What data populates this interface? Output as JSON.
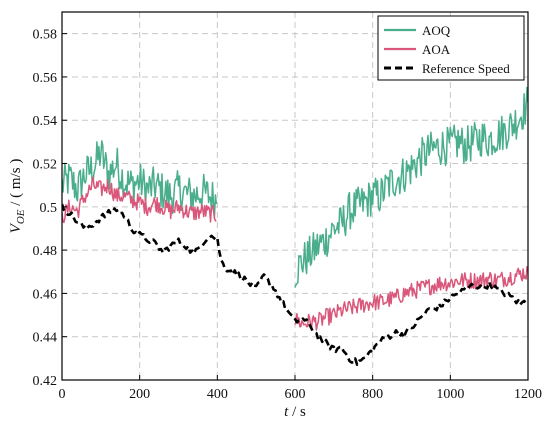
{
  "chart_data": {
    "type": "line",
    "xlabel": {
      "var": "t",
      "sep": " / ",
      "unit": "s"
    },
    "ylabel": {
      "var": "V",
      "sub": "OE",
      "sep": " / ",
      "unit": "( m/s )"
    },
    "xlim": [
      0,
      1200
    ],
    "ylim": [
      0.42,
      0.59
    ],
    "x_ticks": [
      "0",
      "200",
      "400",
      "600",
      "800",
      "1000",
      "1200"
    ],
    "y_ticks": [
      "0.42",
      "0.44",
      "0.46",
      "0.48",
      "0.5",
      "0.52",
      "0.54",
      "0.56",
      "0.58"
    ],
    "grid": true,
    "legend_position": "top-right",
    "series": [
      {
        "name": "AOQ",
        "color": "#4aae8c",
        "style": "solid",
        "points": [
          [
            0,
            0.51
          ],
          [
            20,
            0.513
          ],
          [
            40,
            0.508
          ],
          [
            60,
            0.515
          ],
          [
            80,
            0.518
          ],
          [
            100,
            0.525
          ],
          [
            120,
            0.515
          ],
          [
            140,
            0.52
          ],
          [
            160,
            0.512
          ],
          [
            180,
            0.51
          ],
          [
            200,
            0.512
          ],
          [
            220,
            0.508
          ],
          [
            240,
            0.51
          ],
          [
            260,
            0.507
          ],
          [
            280,
            0.505
          ],
          [
            300,
            0.508
          ],
          [
            320,
            0.506
          ],
          [
            340,
            0.505
          ],
          [
            360,
            0.507
          ],
          [
            380,
            0.505
          ],
          [
            400,
            0.503
          ],
          [
            600,
            0.47
          ],
          [
            620,
            0.475
          ],
          [
            640,
            0.478
          ],
          [
            660,
            0.482
          ],
          [
            680,
            0.485
          ],
          [
            700,
            0.49
          ],
          [
            720,
            0.492
          ],
          [
            740,
            0.498
          ],
          [
            760,
            0.5
          ],
          [
            780,
            0.502
          ],
          [
            800,
            0.505
          ],
          [
            820,
            0.505
          ],
          [
            840,
            0.51
          ],
          [
            860,
            0.513
          ],
          [
            880,
            0.515
          ],
          [
            900,
            0.518
          ],
          [
            920,
            0.522
          ],
          [
            940,
            0.525
          ],
          [
            960,
            0.527
          ],
          [
            980,
            0.528
          ],
          [
            1000,
            0.528
          ],
          [
            1020,
            0.53
          ],
          [
            1040,
            0.528
          ],
          [
            1060,
            0.53
          ],
          [
            1080,
            0.532
          ],
          [
            1100,
            0.531
          ],
          [
            1120,
            0.533
          ],
          [
            1140,
            0.535
          ],
          [
            1160,
            0.538
          ],
          [
            1180,
            0.542
          ],
          [
            1200,
            0.548
          ]
        ]
      },
      {
        "name": "AOA",
        "color": "#d9577a",
        "style": "solid",
        "points": [
          [
            0,
            0.495
          ],
          [
            20,
            0.5
          ],
          [
            40,
            0.498
          ],
          [
            60,
            0.505
          ],
          [
            80,
            0.51
          ],
          [
            100,
            0.508
          ],
          [
            120,
            0.51
          ],
          [
            140,
            0.505
          ],
          [
            160,
            0.505
          ],
          [
            180,
            0.503
          ],
          [
            200,
            0.502
          ],
          [
            220,
            0.5
          ],
          [
            240,
            0.502
          ],
          [
            260,
            0.5
          ],
          [
            280,
            0.498
          ],
          [
            300,
            0.5
          ],
          [
            320,
            0.498
          ],
          [
            340,
            0.497
          ],
          [
            360,
            0.498
          ],
          [
            380,
            0.497
          ],
          [
            400,
            0.496
          ],
          [
            600,
            0.448
          ],
          [
            620,
            0.446
          ],
          [
            640,
            0.447
          ],
          [
            660,
            0.447
          ],
          [
            680,
            0.449
          ],
          [
            700,
            0.45
          ],
          [
            720,
            0.452
          ],
          [
            740,
            0.453
          ],
          [
            760,
            0.454
          ],
          [
            780,
            0.455
          ],
          [
            800,
            0.456
          ],
          [
            820,
            0.456
          ],
          [
            840,
            0.457
          ],
          [
            860,
            0.458
          ],
          [
            880,
            0.46
          ],
          [
            900,
            0.461
          ],
          [
            920,
            0.462
          ],
          [
            940,
            0.463
          ],
          [
            960,
            0.464
          ],
          [
            980,
            0.465
          ],
          [
            1000,
            0.465
          ],
          [
            1020,
            0.466
          ],
          [
            1040,
            0.466
          ],
          [
            1060,
            0.466
          ],
          [
            1080,
            0.466
          ],
          [
            1100,
            0.467
          ],
          [
            1120,
            0.466
          ],
          [
            1140,
            0.467
          ],
          [
            1160,
            0.468
          ],
          [
            1180,
            0.469
          ],
          [
            1200,
            0.47
          ]
        ]
      },
      {
        "name": "Reference Speed",
        "color": "#000000",
        "style": "dashed",
        "points": [
          [
            0,
            0.5
          ],
          [
            20,
            0.497
          ],
          [
            40,
            0.493
          ],
          [
            60,
            0.49
          ],
          [
            80,
            0.492
          ],
          [
            100,
            0.495
          ],
          [
            120,
            0.497
          ],
          [
            140,
            0.499
          ],
          [
            160,
            0.496
          ],
          [
            180,
            0.49
          ],
          [
            200,
            0.487
          ],
          [
            220,
            0.485
          ],
          [
            240,
            0.483
          ],
          [
            260,
            0.479
          ],
          [
            280,
            0.482
          ],
          [
            300,
            0.484
          ],
          [
            320,
            0.482
          ],
          [
            340,
            0.478
          ],
          [
            360,
            0.483
          ],
          [
            380,
            0.487
          ],
          [
            400,
            0.485
          ],
          [
            410,
            0.475
          ],
          [
            420,
            0.472
          ],
          [
            440,
            0.47
          ],
          [
            460,
            0.468
          ],
          [
            480,
            0.465
          ],
          [
            500,
            0.462
          ],
          [
            520,
            0.468
          ],
          [
            540,
            0.464
          ],
          [
            560,
            0.458
          ],
          [
            580,
            0.452
          ],
          [
            600,
            0.447
          ],
          [
            620,
            0.448
          ],
          [
            640,
            0.445
          ],
          [
            660,
            0.44
          ],
          [
            680,
            0.437
          ],
          [
            700,
            0.434
          ],
          [
            720,
            0.435
          ],
          [
            740,
            0.43
          ],
          [
            760,
            0.428
          ],
          [
            780,
            0.43
          ],
          [
            800,
            0.434
          ],
          [
            820,
            0.438
          ],
          [
            840,
            0.44
          ],
          [
            860,
            0.442
          ],
          [
            880,
            0.441
          ],
          [
            900,
            0.444
          ],
          [
            920,
            0.448
          ],
          [
            940,
            0.452
          ],
          [
            960,
            0.453
          ],
          [
            980,
            0.455
          ],
          [
            1000,
            0.458
          ],
          [
            1020,
            0.46
          ],
          [
            1040,
            0.462
          ],
          [
            1060,
            0.464
          ],
          [
            1080,
            0.463
          ],
          [
            1100,
            0.464
          ],
          [
            1120,
            0.462
          ],
          [
            1140,
            0.46
          ],
          [
            1160,
            0.458
          ],
          [
            1180,
            0.455
          ],
          [
            1200,
            0.457
          ]
        ]
      }
    ]
  }
}
